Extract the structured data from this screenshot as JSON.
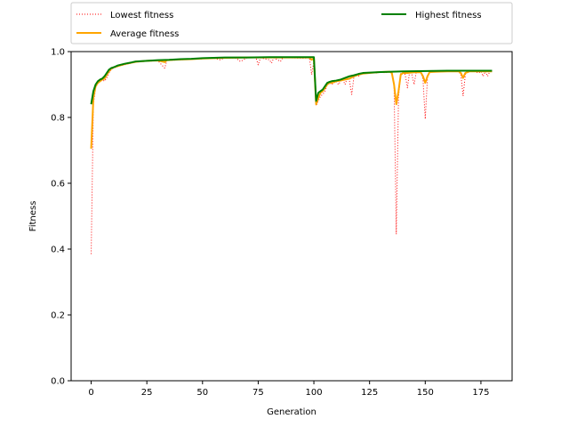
{
  "chart_data": {
    "type": "line",
    "xlabel": "Generation",
    "ylabel": "Fitness",
    "xlim": [
      -9,
      189
    ],
    "ylim": [
      0.0,
      1.0
    ],
    "xticks": [
      0,
      25,
      50,
      75,
      100,
      125,
      150,
      175
    ],
    "yticks": [
      0.0,
      0.2,
      0.4,
      0.6,
      0.8,
      1.0
    ],
    "grid": false,
    "legend_position": "top",
    "series": [
      {
        "name": "Lowest fitness",
        "color": "#ff0000",
        "style": "dotted",
        "points": [
          [
            0,
            0.385
          ],
          [
            1,
            0.84
          ],
          [
            2,
            0.89
          ],
          [
            3,
            0.905
          ],
          [
            4,
            0.91
          ],
          [
            5,
            0.915
          ],
          [
            6,
            0.91
          ],
          [
            7,
            0.92
          ],
          [
            8,
            0.935
          ],
          [
            9,
            0.945
          ],
          [
            10,
            0.95
          ],
          [
            12,
            0.955
          ],
          [
            15,
            0.96
          ],
          [
            18,
            0.965
          ],
          [
            20,
            0.968
          ],
          [
            25,
            0.971
          ],
          [
            30,
            0.972
          ],
          [
            33,
            0.95
          ],
          [
            34,
            0.973
          ],
          [
            40,
            0.975
          ],
          [
            45,
            0.977
          ],
          [
            50,
            0.978
          ],
          [
            52,
            0.979
          ],
          [
            55,
            0.98
          ],
          [
            58,
            0.975
          ],
          [
            60,
            0.981
          ],
          [
            65,
            0.98
          ],
          [
            67,
            0.97
          ],
          [
            70,
            0.981
          ],
          [
            74,
            0.981
          ],
          [
            75,
            0.96
          ],
          [
            76,
            0.981
          ],
          [
            80,
            0.975
          ],
          [
            81,
            0.965
          ],
          [
            82,
            0.981
          ],
          [
            85,
            0.97
          ],
          [
            86,
            0.981
          ],
          [
            90,
            0.981
          ],
          [
            95,
            0.98
          ],
          [
            98,
            0.981
          ],
          [
            99,
            0.93
          ],
          [
            100,
            0.97
          ],
          [
            101,
            0.835
          ],
          [
            102,
            0.85
          ],
          [
            103,
            0.865
          ],
          [
            104,
            0.87
          ],
          [
            105,
            0.88
          ],
          [
            106,
            0.9
          ],
          [
            107,
            0.905
          ],
          [
            108,
            0.9
          ],
          [
            109,
            0.905
          ],
          [
            110,
            0.91
          ],
          [
            111,
            0.9
          ],
          [
            112,
            0.91
          ],
          [
            113,
            0.915
          ],
          [
            114,
            0.9
          ],
          [
            115,
            0.92
          ],
          [
            116,
            0.91
          ],
          [
            117,
            0.87
          ],
          [
            118,
            0.925
          ],
          [
            119,
            0.93
          ],
          [
            120,
            0.925
          ],
          [
            121,
            0.93
          ],
          [
            122,
            0.935
          ],
          [
            125,
            0.935
          ],
          [
            128,
            0.935
          ],
          [
            130,
            0.94
          ],
          [
            132,
            0.935
          ],
          [
            134,
            0.94
          ],
          [
            135,
            0.935
          ],
          [
            136,
            0.9
          ],
          [
            137,
            0.445
          ],
          [
            138,
            0.86
          ],
          [
            139,
            0.935
          ],
          [
            140,
            0.935
          ],
          [
            141,
            0.93
          ],
          [
            142,
            0.89
          ],
          [
            143,
            0.94
          ],
          [
            144,
            0.93
          ],
          [
            145,
            0.9
          ],
          [
            146,
            0.94
          ],
          [
            148,
            0.94
          ],
          [
            149,
            0.915
          ],
          [
            150,
            0.795
          ],
          [
            151,
            0.92
          ],
          [
            152,
            0.94
          ],
          [
            155,
            0.94
          ],
          [
            158,
            0.94
          ],
          [
            160,
            0.94
          ],
          [
            163,
            0.94
          ],
          [
            165,
            0.94
          ],
          [
            166,
            0.93
          ],
          [
            167,
            0.865
          ],
          [
            168,
            0.93
          ],
          [
            169,
            0.94
          ],
          [
            170,
            0.94
          ],
          [
            172,
            0.94
          ],
          [
            174,
            0.935
          ],
          [
            175,
            0.94
          ],
          [
            176,
            0.925
          ],
          [
            177,
            0.94
          ],
          [
            178,
            0.925
          ],
          [
            179,
            0.94
          ],
          [
            180,
            0.94
          ]
        ]
      },
      {
        "name": "Average fitness",
        "color": "#ffa500",
        "style": "solid",
        "points": [
          [
            0,
            0.705
          ],
          [
            1,
            0.86
          ],
          [
            2,
            0.895
          ],
          [
            3,
            0.905
          ],
          [
            4,
            0.91
          ],
          [
            5,
            0.915
          ],
          [
            6,
            0.918
          ],
          [
            7,
            0.93
          ],
          [
            8,
            0.94
          ],
          [
            9,
            0.948
          ],
          [
            10,
            0.952
          ],
          [
            12,
            0.956
          ],
          [
            15,
            0.962
          ],
          [
            18,
            0.966
          ],
          [
            20,
            0.969
          ],
          [
            25,
            0.972
          ],
          [
            30,
            0.973
          ],
          [
            33,
            0.968
          ],
          [
            34,
            0.974
          ],
          [
            40,
            0.976
          ],
          [
            45,
            0.977
          ],
          [
            50,
            0.979
          ],
          [
            55,
            0.98
          ],
          [
            60,
            0.981
          ],
          [
            70,
            0.982
          ],
          [
            80,
            0.982
          ],
          [
            90,
            0.982
          ],
          [
            98,
            0.982
          ],
          [
            99,
            0.975
          ],
          [
            100,
            0.98
          ],
          [
            101,
            0.84
          ],
          [
            102,
            0.86
          ],
          [
            103,
            0.875
          ],
          [
            104,
            0.88
          ],
          [
            105,
            0.89
          ],
          [
            106,
            0.9
          ],
          [
            107,
            0.905
          ],
          [
            108,
            0.905
          ],
          [
            110,
            0.91
          ],
          [
            112,
            0.912
          ],
          [
            114,
            0.915
          ],
          [
            116,
            0.918
          ],
          [
            118,
            0.925
          ],
          [
            120,
            0.93
          ],
          [
            122,
            0.933
          ],
          [
            125,
            0.935
          ],
          [
            130,
            0.938
          ],
          [
            134,
            0.939
          ],
          [
            135,
            0.935
          ],
          [
            136,
            0.9
          ],
          [
            137,
            0.84
          ],
          [
            138,
            0.88
          ],
          [
            139,
            0.93
          ],
          [
            140,
            0.935
          ],
          [
            142,
            0.935
          ],
          [
            145,
            0.937
          ],
          [
            148,
            0.937
          ],
          [
            149,
            0.925
          ],
          [
            150,
            0.905
          ],
          [
            151,
            0.925
          ],
          [
            152,
            0.938
          ],
          [
            155,
            0.939
          ],
          [
            160,
            0.94
          ],
          [
            165,
            0.94
          ],
          [
            166,
            0.935
          ],
          [
            167,
            0.92
          ],
          [
            168,
            0.935
          ],
          [
            170,
            0.94
          ],
          [
            175,
            0.94
          ],
          [
            180,
            0.94
          ]
        ]
      },
      {
        "name": "Highest fitness",
        "color": "#008000",
        "style": "solid",
        "points": [
          [
            0,
            0.84
          ],
          [
            1,
            0.88
          ],
          [
            2,
            0.9
          ],
          [
            3,
            0.91
          ],
          [
            4,
            0.915
          ],
          [
            5,
            0.918
          ],
          [
            6,
            0.925
          ],
          [
            7,
            0.935
          ],
          [
            8,
            0.945
          ],
          [
            9,
            0.95
          ],
          [
            10,
            0.952
          ],
          [
            12,
            0.958
          ],
          [
            15,
            0.963
          ],
          [
            18,
            0.967
          ],
          [
            20,
            0.97
          ],
          [
            25,
            0.972
          ],
          [
            30,
            0.974
          ],
          [
            35,
            0.975
          ],
          [
            40,
            0.977
          ],
          [
            45,
            0.978
          ],
          [
            50,
            0.98
          ],
          [
            55,
            0.981
          ],
          [
            60,
            0.982
          ],
          [
            70,
            0.982
          ],
          [
            80,
            0.983
          ],
          [
            90,
            0.983
          ],
          [
            100,
            0.983
          ],
          [
            101,
            0.85
          ],
          [
            102,
            0.875
          ],
          [
            103,
            0.88
          ],
          [
            104,
            0.885
          ],
          [
            105,
            0.895
          ],
          [
            106,
            0.905
          ],
          [
            107,
            0.908
          ],
          [
            108,
            0.91
          ],
          [
            110,
            0.912
          ],
          [
            112,
            0.915
          ],
          [
            114,
            0.92
          ],
          [
            116,
            0.925
          ],
          [
            118,
            0.928
          ],
          [
            120,
            0.932
          ],
          [
            122,
            0.935
          ],
          [
            125,
            0.936
          ],
          [
            130,
            0.938
          ],
          [
            135,
            0.939
          ],
          [
            140,
            0.94
          ],
          [
            150,
            0.941
          ],
          [
            160,
            0.942
          ],
          [
            170,
            0.942
          ],
          [
            180,
            0.942
          ]
        ]
      }
    ]
  }
}
